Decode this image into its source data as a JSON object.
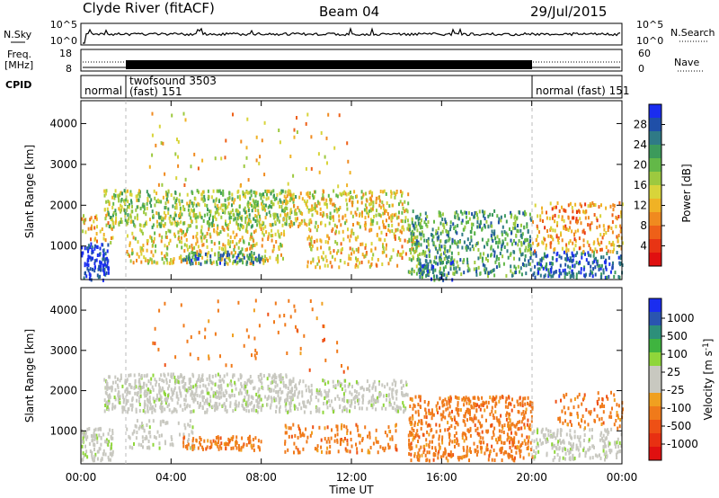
{
  "header": {
    "station": "Clyde River (fitACF)",
    "beam": "Beam 04",
    "date": "29/Jul/2015"
  },
  "noise_panel": {
    "left_label": "N.Sky",
    "right_label": "N.Search",
    "left_ticks": [
      "10^5",
      "10^0"
    ],
    "right_ticks": [
      "10^5",
      "10^0"
    ]
  },
  "freq_panel": {
    "left_label_line1": "Freq.",
    "left_label_line2": "[MHz]",
    "right_label": "Nave",
    "left_ticks": [
      "18",
      "8"
    ],
    "right_ticks": [
      "60",
      "0"
    ]
  },
  "cpid_panel": {
    "label": "CPID",
    "segments": [
      "normal",
      "twofsound 3503",
      "(fast) 151",
      "normal (fast) 151"
    ]
  },
  "x_axis": {
    "label": "Time UT",
    "ticks": [
      "00:00",
      "04:00",
      "08:00",
      "12:00",
      "16:00",
      "20:00",
      "00:00"
    ],
    "tick_hours": [
      0,
      4,
      8,
      12,
      16,
      20,
      24
    ]
  },
  "chart_data": [
    {
      "type": "heatmap",
      "title": "Power",
      "ylabel": "Slant Range [km]",
      "ylim": [
        180,
        4560
      ],
      "yticks": [
        1000,
        2000,
        3000,
        4000
      ],
      "xlim_hours": [
        0,
        24
      ],
      "colorbar": {
        "label": "Power [dB]",
        "ticks": [
          "4",
          "8",
          "12",
          "16",
          "20",
          "24",
          "28"
        ],
        "tick_values": [
          4,
          8,
          12,
          16,
          20,
          24,
          28
        ],
        "range": [
          0,
          32
        ],
        "colors": [
          "#1a2df0",
          "#1f4fa8",
          "#2f7a86",
          "#3c9a5b",
          "#63b848",
          "#9dc93f",
          "#d8d43a",
          "#f0b225",
          "#f08a1f",
          "#ee6018",
          "#e83414",
          "#e01010"
        ]
      },
      "scatter_bands": [
        {
          "t": [
            0.0,
            1.2
          ],
          "r": [
            200,
            1100
          ],
          "level": 30,
          "density": 0.9
        },
        {
          "t": [
            0.0,
            1.4
          ],
          "r": [
            1100,
            1800
          ],
          "level": 12,
          "density": 0.35
        },
        {
          "t": [
            1.0,
            9.5
          ],
          "r": [
            1500,
            2400
          ],
          "level": 18,
          "density": 0.7
        },
        {
          "t": [
            2.0,
            9.0
          ],
          "r": [
            600,
            1500
          ],
          "level": 14,
          "density": 0.45
        },
        {
          "t": [
            4.5,
            8.0
          ],
          "r": [
            600,
            900
          ],
          "level": 24,
          "density": 0.7
        },
        {
          "t": [
            9.0,
            14.5
          ],
          "r": [
            1500,
            2400
          ],
          "level": 14,
          "density": 0.55
        },
        {
          "t": [
            10.0,
            15.0
          ],
          "r": [
            500,
            1500
          ],
          "level": 12,
          "density": 0.35
        },
        {
          "t": [
            14.5,
            20.0
          ],
          "r": [
            300,
            1900
          ],
          "level": 22,
          "density": 0.55
        },
        {
          "t": [
            15.0,
            16.5
          ],
          "r": [
            200,
            700
          ],
          "level": 26,
          "density": 0.6
        },
        {
          "t": [
            20.0,
            24.0
          ],
          "r": [
            250,
            900
          ],
          "level": 27,
          "density": 0.65
        },
        {
          "t": [
            20.0,
            24.0
          ],
          "r": [
            900,
            2100
          ],
          "level": 10,
          "density": 0.4
        },
        {
          "t": [
            3.0,
            12.0
          ],
          "r": [
            2500,
            4300
          ],
          "level": 12,
          "density": 0.04
        }
      ]
    },
    {
      "type": "heatmap",
      "title": "Velocity",
      "ylabel": "Slant Range [km]",
      "ylim": [
        180,
        4560
      ],
      "yticks": [
        1000,
        2000,
        3000,
        4000
      ],
      "xlim_hours": [
        0,
        24
      ],
      "colorbar": {
        "label": "Velocity [m s^-1]",
        "ticks": [
          "1000",
          "500",
          "100",
          "25",
          "-25",
          "-100",
          "-500",
          "-1000"
        ],
        "colors": [
          "#1a2df0",
          "#2a55b0",
          "#2d8f7a",
          "#3fb43f",
          "#8fd63a",
          "#c8c8c0",
          "#c8c8c0",
          "#f0a020",
          "#f07a1a",
          "#ee5015",
          "#e83012",
          "#e01010"
        ]
      },
      "scatter_bands": [
        {
          "t": [
            0.0,
            1.4
          ],
          "r": [
            300,
            1100
          ],
          "value": "25",
          "density": 0.85
        },
        {
          "t": [
            1.0,
            9.5
          ],
          "r": [
            1500,
            2450
          ],
          "value": "25",
          "density": 0.75
        },
        {
          "t": [
            2.0,
            5.0
          ],
          "r": [
            600,
            1300
          ],
          "value": "25",
          "density": 0.35
        },
        {
          "t": [
            4.5,
            8.0
          ],
          "r": [
            550,
            900
          ],
          "value": "-100",
          "density": 0.7
        },
        {
          "t": [
            9.0,
            14.5
          ],
          "r": [
            1500,
            2300
          ],
          "value": "25",
          "density": 0.55
        },
        {
          "t": [
            9.0,
            14.0
          ],
          "r": [
            500,
            1200
          ],
          "value": "-100",
          "density": 0.35
        },
        {
          "t": [
            14.5,
            20.0
          ],
          "r": [
            300,
            1900
          ],
          "value": "-100",
          "density": 0.6
        },
        {
          "t": [
            20.0,
            24.0
          ],
          "r": [
            300,
            1100
          ],
          "value": "25",
          "density": 0.55
        },
        {
          "t": [
            21.0,
            24.0
          ],
          "r": [
            1100,
            2000
          ],
          "value": "-100",
          "density": 0.3
        },
        {
          "t": [
            3.0,
            12.0
          ],
          "r": [
            2500,
            4300
          ],
          "value": "-100",
          "density": 0.04
        }
      ]
    }
  ]
}
